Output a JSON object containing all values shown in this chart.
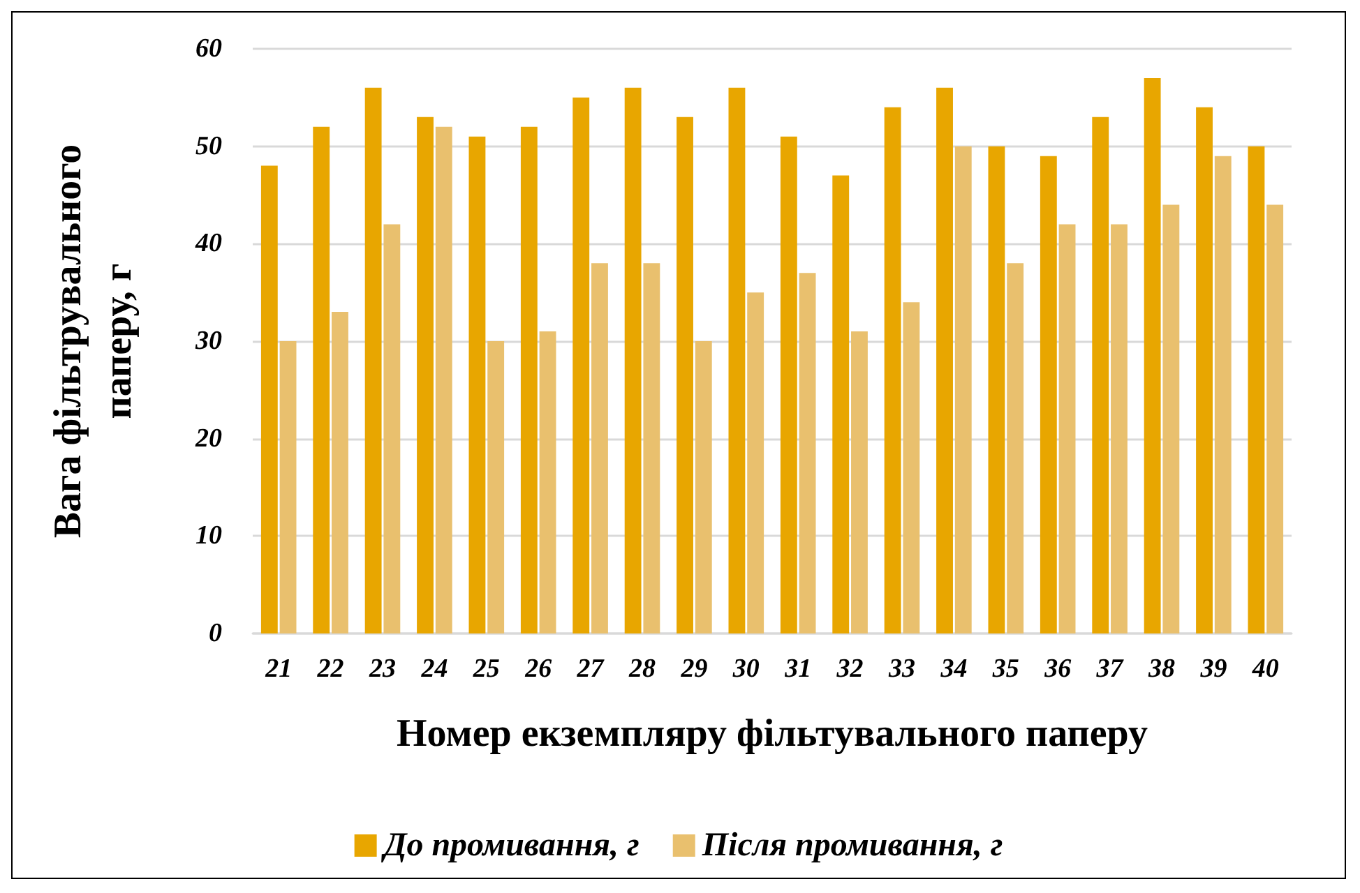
{
  "chart_data": {
    "type": "bar",
    "xlabel": "Номер екземпляру фільтувального паперу",
    "ylabel": "Вага фільтрувального паперу, г",
    "categories": [
      "21",
      "22",
      "23",
      "24",
      "25",
      "26",
      "27",
      "28",
      "29",
      "30",
      "31",
      "32",
      "33",
      "34",
      "35",
      "36",
      "37",
      "38",
      "39",
      "40"
    ],
    "series": [
      {
        "name": "До промивання, г",
        "color": "#e8a600",
        "values": [
          48,
          52,
          56,
          53,
          51,
          52,
          55,
          56,
          53,
          56,
          51,
          47,
          54,
          56,
          50,
          49,
          53,
          57,
          54,
          50
        ]
      },
      {
        "name": "Після промивання, г",
        "color": "#e9c06e",
        "values": [
          30,
          33,
          42,
          52,
          30,
          31,
          38,
          38,
          30,
          35,
          37,
          31,
          34,
          50,
          38,
          42,
          42,
          44,
          49,
          44
        ]
      }
    ],
    "ylim": [
      0,
      60
    ],
    "yticks": [
      0,
      10,
      20,
      30,
      40,
      50,
      60
    ],
    "grid": "y",
    "legend": "bottom"
  }
}
